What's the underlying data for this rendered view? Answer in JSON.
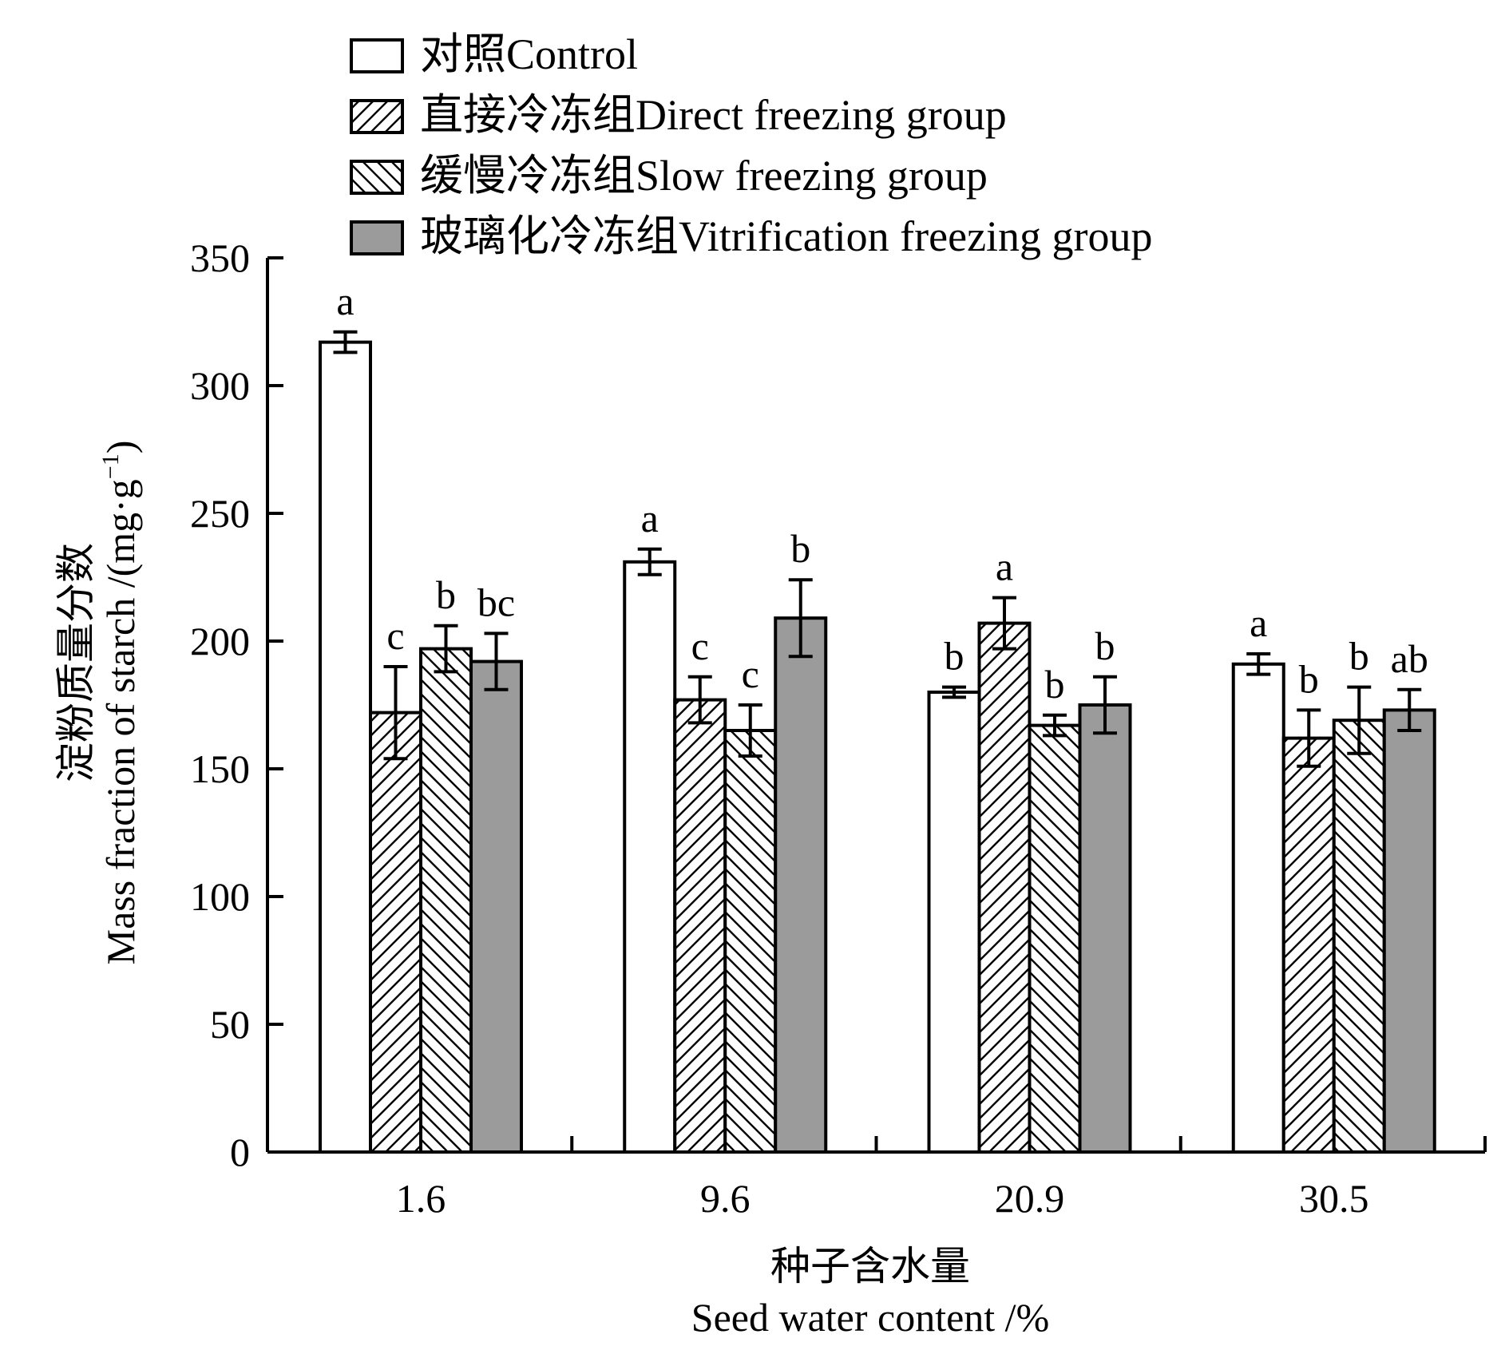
{
  "chart_data": {
    "type": "bar",
    "xlabel": [
      "种子含水量",
      "Seed water content /%"
    ],
    "ylabel": [
      "淀粉质量分数",
      "Mass fraction of starch /(mg·g⁻¹)"
    ],
    "ylabel_parts": {
      "line1": "淀粉质量分数",
      "line2_main": "Mass fraction of starch /(mg·g",
      "line2_sup": "−1",
      "line2_end": ")"
    },
    "categories": [
      "1.6",
      "9.6",
      "20.9",
      "30.5"
    ],
    "ylim": [
      0,
      350
    ],
    "yticks": [
      0,
      50,
      100,
      150,
      200,
      250,
      300,
      350
    ],
    "ytick_labels": [
      "0",
      "50",
      "100",
      "150",
      "200",
      "250",
      "300",
      "350"
    ],
    "grid": false,
    "legend_position": "top",
    "series": [
      {
        "name": "对照Control",
        "pattern": "white",
        "values": [
          317,
          231,
          180,
          191
        ],
        "errors": [
          4,
          5,
          2,
          4
        ],
        "letters": [
          "a",
          "a",
          "b",
          "a"
        ]
      },
      {
        "name": "直接冷冻组Direct freezing group",
        "pattern": "hatch-forward",
        "values": [
          172,
          177,
          207,
          162
        ],
        "errors": [
          18,
          9,
          10,
          11
        ],
        "letters": [
          "c",
          "c",
          "a",
          "b"
        ]
      },
      {
        "name": "缓慢冷冻组Slow freezing group",
        "pattern": "hatch-back",
        "values": [
          197,
          165,
          167,
          169
        ],
        "errors": [
          9,
          10,
          4,
          13
        ],
        "letters": [
          "b",
          "c",
          "b",
          "b"
        ]
      },
      {
        "name": "玻璃化冷冻组Vitrification freezing group",
        "pattern": "gray",
        "values": [
          192,
          209,
          175,
          173
        ],
        "errors": [
          11,
          15,
          11,
          8
        ],
        "letters": [
          "bc",
          "b",
          "b",
          "ab"
        ]
      }
    ],
    "colors": {
      "axis": "#000000",
      "gray_fill": "#9b9b9b",
      "white_fill": "#ffffff"
    }
  }
}
